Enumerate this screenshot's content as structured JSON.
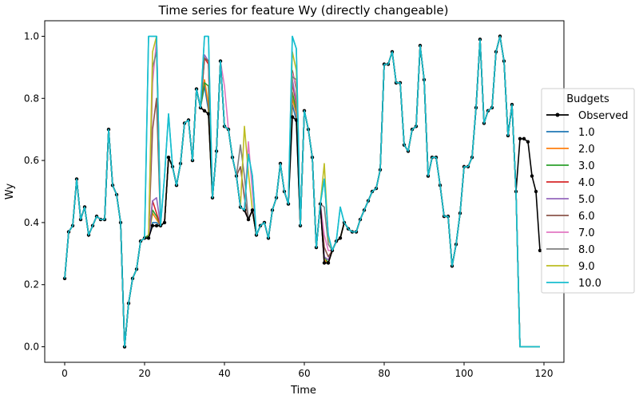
{
  "chart_data": {
    "type": "line",
    "title": "Time series for feature Wy (directly changeable)",
    "xlabel": "Time",
    "ylabel": "Wy",
    "xlim": [
      -5,
      125
    ],
    "ylim": [
      -0.05,
      1.05
    ],
    "xticks": [
      0,
      20,
      40,
      60,
      80,
      100,
      120
    ],
    "yticks": [
      0.0,
      0.2,
      0.4,
      0.6,
      0.8,
      1.0
    ],
    "xtick_labels": [
      "0",
      "20",
      "40",
      "60",
      "80",
      "100",
      "120"
    ],
    "ytick_labels": [
      "0.0",
      "0.2",
      "0.4",
      "0.6",
      "0.8",
      "1.0"
    ],
    "grid": false,
    "legend": {
      "title": "Budgets",
      "placement": "center-right"
    },
    "observed": {
      "name": "Observed",
      "color": "#000000",
      "x": [
        0,
        1,
        2,
        3,
        4,
        5,
        6,
        7,
        8,
        9,
        10,
        11,
        12,
        13,
        14,
        15,
        16,
        17,
        18,
        19,
        20,
        21,
        22,
        23,
        24,
        25,
        26,
        27,
        28,
        29,
        30,
        31,
        32,
        33,
        34,
        35,
        36,
        37,
        38,
        39,
        40,
        41,
        42,
        43,
        44,
        45,
        46,
        47,
        48,
        49,
        50,
        51,
        52,
        53,
        54,
        55,
        56,
        57,
        58,
        59,
        60,
        61,
        62,
        63,
        64,
        65,
        66,
        67,
        68,
        69,
        70,
        71,
        72,
        73,
        74,
        75,
        76,
        77,
        78,
        79,
        80,
        81,
        82,
        83,
        84,
        85,
        86,
        87,
        88,
        89,
        90,
        91,
        92,
        93,
        94,
        95,
        96,
        97,
        98,
        99,
        100,
        101,
        102,
        103,
        104,
        105,
        106,
        107,
        108,
        109,
        110,
        111,
        112,
        113,
        114,
        115,
        116,
        117,
        118,
        119
      ],
      "y": [
        0.22,
        0.37,
        0.39,
        0.54,
        0.41,
        0.45,
        0.36,
        0.39,
        0.42,
        0.41,
        0.41,
        0.7,
        0.52,
        0.49,
        0.4,
        0.0,
        0.14,
        0.22,
        0.25,
        0.34,
        0.35,
        0.35,
        0.39,
        0.39,
        0.39,
        0.4,
        0.61,
        0.58,
        0.52,
        0.59,
        0.72,
        0.73,
        0.6,
        0.83,
        0.77,
        0.76,
        0.75,
        0.48,
        0.63,
        0.92,
        0.71,
        0.7,
        0.61,
        0.55,
        0.45,
        0.44,
        0.41,
        0.44,
        0.36,
        0.39,
        0.4,
        0.35,
        0.44,
        0.48,
        0.59,
        0.5,
        0.46,
        0.74,
        0.73,
        0.39,
        0.76,
        0.7,
        0.61,
        0.32,
        0.46,
        0.27,
        0.27,
        0.31,
        0.34,
        0.35,
        0.4,
        0.38,
        0.37,
        0.37,
        0.41,
        0.44,
        0.47,
        0.5,
        0.51,
        0.57,
        0.91,
        0.91,
        0.95,
        0.85,
        0.85,
        0.65,
        0.63,
        0.7,
        0.71,
        0.97,
        0.86,
        0.55,
        0.61,
        0.61,
        0.52,
        0.42,
        0.42,
        0.26,
        0.33,
        0.43,
        0.58,
        0.58,
        0.61,
        0.77,
        0.99,
        0.72,
        0.76,
        0.77,
        0.95,
        1.0,
        0.92,
        0.68,
        0.78,
        0.5,
        0.67,
        0.67,
        0.66,
        0.55,
        0.5,
        0.31
      ]
    },
    "base_series": [
      0.22,
      0.37,
      0.39,
      0.54,
      0.41,
      0.45,
      0.36,
      0.39,
      0.42,
      0.41,
      0.41,
      0.7,
      0.52,
      0.49,
      0.4,
      0.0,
      0.14,
      0.22,
      0.25,
      0.34,
      0.35,
      0.35,
      0.39,
      0.39,
      0.39,
      0.4,
      0.61,
      0.58,
      0.52,
      0.59,
      0.72,
      0.73,
      0.6,
      0.83,
      0.77,
      0.76,
      0.75,
      0.48,
      0.63,
      0.92,
      0.71,
      0.7,
      0.61,
      0.55,
      0.45,
      0.44,
      0.41,
      0.44,
      0.36,
      0.39,
      0.4,
      0.35,
      0.44,
      0.48,
      0.59,
      0.5,
      0.46,
      0.74,
      0.73,
      0.39,
      0.76,
      0.7,
      0.61,
      0.32,
      0.46,
      0.27,
      0.27,
      0.31,
      0.34,
      0.35,
      0.4,
      0.38,
      0.37,
      0.37,
      0.41,
      0.44,
      0.47,
      0.5,
      0.51,
      0.57,
      0.91,
      0.91,
      0.95,
      0.85,
      0.85,
      0.65,
      0.63,
      0.7,
      0.71,
      0.97,
      0.86,
      0.55,
      0.61,
      0.61,
      0.52,
      0.42,
      0.42,
      0.26,
      0.33,
      0.43,
      0.58,
      0.58,
      0.61,
      0.77,
      0.99,
      0.72,
      0.76,
      0.77,
      0.95,
      1.0,
      0.92,
      0.68,
      0.78,
      0.5,
      0.0,
      0.0,
      0.0,
      0.0,
      0.0,
      0.0
    ],
    "series": [
      {
        "name": "1.0",
        "color": "#1f77b4",
        "overrides": {
          "22": 0.4,
          "23": 0.4,
          "35": 0.84,
          "36": 0.76,
          "57": 0.78,
          "58": 0.73
        }
      },
      {
        "name": "2.0",
        "color": "#ff7f0e",
        "overrides": {
          "21": 0.36,
          "22": 0.43,
          "23": 0.41,
          "35": 0.86,
          "36": 0.78,
          "57": 0.8,
          "58": 0.75,
          "65": 0.28
        }
      },
      {
        "name": "3.0",
        "color": "#2ca02c",
        "overrides": {
          "21": 0.36,
          "22": 0.44,
          "23": 0.42,
          "35": 0.85,
          "36": 0.84,
          "57": 0.82,
          "58": 0.76,
          "65": 0.29
        }
      },
      {
        "name": "4.0",
        "color": "#d62728",
        "overrides": {
          "21": 0.35,
          "22": 0.47,
          "23": 0.43,
          "35": 0.93,
          "36": 0.91,
          "57": 0.85,
          "58": 0.78,
          "65": 0.27,
          "66": 0.27
        }
      },
      {
        "name": "5.0",
        "color": "#9467bd",
        "overrides": {
          "21": 0.35,
          "22": 0.47,
          "23": 0.48,
          "35": 0.94,
          "36": 0.92,
          "57": 0.86,
          "58": 0.79,
          "65": 0.29,
          "66": 0.28
        }
      },
      {
        "name": "6.0",
        "color": "#8c564b",
        "overrides": {
          "22": 0.7,
          "23": 0.8,
          "35": 0.93,
          "36": 0.92,
          "44": 0.58,
          "45": 0.48,
          "57": 0.89,
          "58": 0.83,
          "65": 0.32,
          "66": 0.29
        }
      },
      {
        "name": "7.0",
        "color": "#e377c2",
        "overrides": {
          "22": 0.85,
          "23": 0.99,
          "40": 0.84,
          "46": 0.66,
          "47": 0.5,
          "57": 0.88,
          "58": 0.84,
          "65": 0.36,
          "66": 0.31
        }
      },
      {
        "name": "8.0",
        "color": "#7f7f7f",
        "overrides": {
          "22": 0.9,
          "23": 0.95,
          "44": 0.65,
          "45": 0.55,
          "57": 0.87,
          "58": 0.86,
          "65": 0.45,
          "66": 0.33
        }
      },
      {
        "name": "9.0",
        "color": "#bcbd22",
        "overrides": {
          "22": 0.95,
          "23": 1.0,
          "45": 0.71,
          "46": 0.56,
          "57": 0.95,
          "58": 0.89,
          "65": 0.59,
          "66": 0.35
        }
      },
      {
        "name": "10.0",
        "color": "#17becf",
        "overrides": {
          "21": 1.0,
          "22": 1.0,
          "23": 1.0,
          "25": 0.55,
          "26": 0.75,
          "35": 1.0,
          "36": 1.0,
          "46": 0.62,
          "47": 0.55,
          "57": 1.0,
          "58": 0.96,
          "65": 0.54,
          "66": 0.36,
          "69": 0.45
        }
      }
    ]
  }
}
